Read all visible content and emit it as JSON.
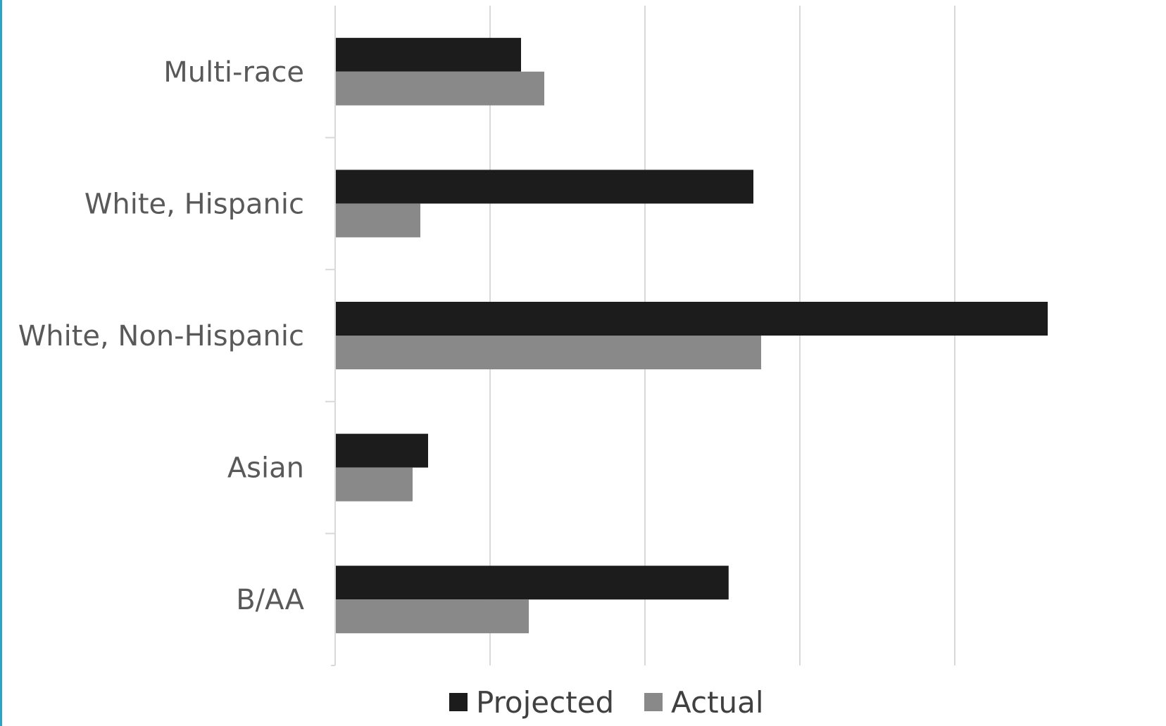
{
  "chart_data": {
    "type": "bar",
    "orientation": "horizontal",
    "title": "",
    "xlabel": "",
    "ylabel": "",
    "categories": [
      "B/AA",
      "Asian",
      "White, Non-Hispanic",
      "White, Hispanic",
      "Multi-race"
    ],
    "series": [
      {
        "name": "Projected",
        "values": [
          12.7,
          3.0,
          23.0,
          13.5,
          6.0
        ],
        "color": "#1c1c1c"
      },
      {
        "name": "Actual",
        "values": [
          6.25,
          2.5,
          13.75,
          2.75,
          6.75
        ],
        "color": "#898989"
      }
    ],
    "xlim": [
      0,
      25
    ],
    "x_gridlines": [
      0,
      5,
      10,
      15,
      20
    ],
    "x_tick_labels_visible": false,
    "grid": true,
    "legend_position": "bottom",
    "colors": {
      "gridline": "#d9d9d9",
      "axis": "#d9d9d9",
      "accent_edge": "#2aa4c4"
    }
  }
}
